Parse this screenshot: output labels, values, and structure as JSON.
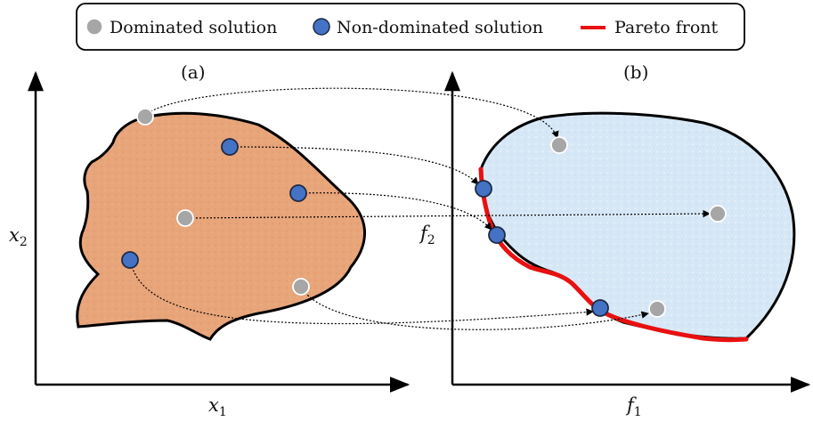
{
  "legend": {
    "items": [
      {
        "label": "Dominated solution",
        "kind": "dominated",
        "color": "#a6a6a6"
      },
      {
        "label": "Non-dominated solution",
        "kind": "nondominated",
        "color": "#4472c4"
      },
      {
        "label": "Pareto front",
        "kind": "front",
        "color": "#e81010"
      }
    ]
  },
  "panels": {
    "a": {
      "label": "(a)",
      "x_axis": "x",
      "x_sub": "1",
      "y_axis": "x",
      "y_sub": "2",
      "fill": "#e8a57a"
    },
    "b": {
      "label": "(b)",
      "x_axis": "f",
      "x_sub": "1",
      "y_axis": "f",
      "y_sub": "2",
      "fill": "#d6e7f6"
    }
  },
  "colors": {
    "dominated": "#a6a6a6",
    "nondominated": "#4472c4",
    "front": "#e81010",
    "outline": "#000000"
  }
}
